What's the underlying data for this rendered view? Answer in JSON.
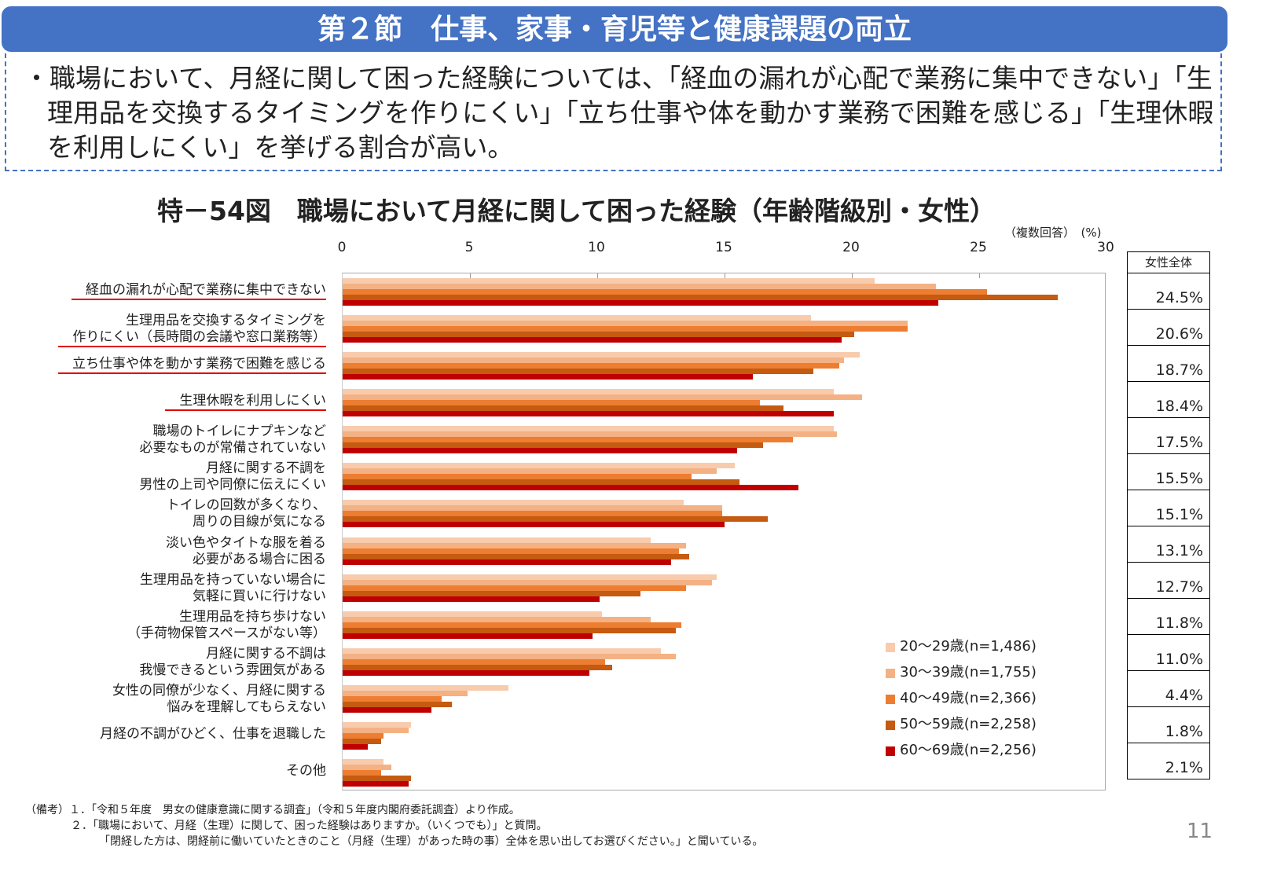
{
  "header": {
    "title": "第２節　仕事、家事・育児等と健康課題の両立"
  },
  "summary": "・職場において、月経に関して困った経験については、「経血の漏れが心配で業務に集中できない」「生理用品を交換するタイミングを作りにくい」「立ち仕事や体を動かす業務で困難を感じる」「生理休暇を利用しにくい」を挙げる割合が高い。",
  "chart_data": {
    "type": "bar",
    "orientation": "horizontal",
    "title": "特－54図　職場において月経に関して困った経験（年齢階級別・女性）",
    "note": "（複数回答）　(%)",
    "xlim": [
      0,
      30
    ],
    "ticks": [
      "0",
      "5",
      "10",
      "15",
      "20",
      "25",
      "30"
    ],
    "categories": [
      "経血の漏れが心配で業務に集中できない",
      "生理用品を交換するタイミングを\n作りにくい（長時間の会議や窓口業務等）",
      "立ち仕事や体を動かす業務で困難を感じる",
      "生理休暇を利用しにくい",
      "職場のトイレにナプキンなど\n必要なものが常備されていない",
      "月経に関する不調を\n男性の上司や同僚に伝えにくい",
      "トイレの回数が多くなり、\n周りの目線が気になる",
      "淡い色やタイトな服を着る\n必要がある場合に困る",
      "生理用品を持っていない場合に\n気軽に買いに行けない",
      "生理用品を持ち歩けない\n（手荷物保管スペースがない等）",
      "月経に関する不調は\n我慢できるという雰囲気がある",
      "女性の同僚が少なく、月経に関する\n悩みを理解してもらえない",
      "月経の不調がひどく、仕事を退職した",
      "その他"
    ],
    "highlighted": [
      0,
      1,
      2,
      3
    ],
    "series": [
      {
        "name": "20～29歳(n=1,486)",
        "color": "#F8CBAD",
        "values": [
          20.9,
          18.4,
          20.3,
          19.3,
          19.3,
          15.4,
          13.4,
          12.1,
          14.7,
          10.2,
          12.5,
          6.5,
          2.7,
          1.6
        ]
      },
      {
        "name": "30～39歳(n=1,755)",
        "color": "#F4B183",
        "values": [
          23.3,
          22.2,
          19.7,
          20.4,
          19.4,
          14.7,
          14.9,
          13.5,
          14.5,
          12.1,
          13.1,
          4.9,
          2.6,
          1.9
        ]
      },
      {
        "name": "40～49歳(n=2,366)",
        "color": "#ED7D31",
        "values": [
          25.3,
          22.2,
          19.5,
          16.4,
          17.7,
          13.7,
          14.9,
          13.2,
          13.5,
          13.3,
          10.3,
          3.9,
          1.6,
          1.5
        ]
      },
      {
        "name": "50～59歳(n=2,258)",
        "color": "#C55A11",
        "values": [
          28.1,
          20.1,
          18.5,
          17.3,
          16.5,
          15.6,
          16.7,
          13.6,
          11.7,
          13.1,
          10.6,
          4.3,
          1.5,
          2.7
        ]
      },
      {
        "name": "60～69歳(n=2,256)",
        "color": "#C00000",
        "values": [
          23.4,
          19.6,
          16.1,
          19.3,
          15.5,
          17.9,
          15.0,
          12.9,
          10.1,
          9.8,
          9.7,
          3.5,
          1.0,
          2.6
        ]
      }
    ],
    "total": {
      "header": "女性全体",
      "values": [
        "24.5%",
        "20.6%",
        "18.7%",
        "18.4%",
        "17.5%",
        "15.5%",
        "15.1%",
        "13.1%",
        "12.7%",
        "11.8%",
        "11.0%",
        "4.4%",
        "1.8%",
        "2.1%"
      ]
    }
  },
  "footnotes": [
    "（備考）１．「令和５年度　男女の健康意識に関する調査」（令和５年度内閣府委託調査）より作成。",
    "２．「職場において、月経（生理）に関して、困った経験はありますか。（いくつでも）」と質問。",
    "「閉経した方は、閉経前に働いていたときのこと（月経（生理）があった時の事）全体を思い出してお選びください。」と聞いている。"
  ],
  "page_number": "11"
}
